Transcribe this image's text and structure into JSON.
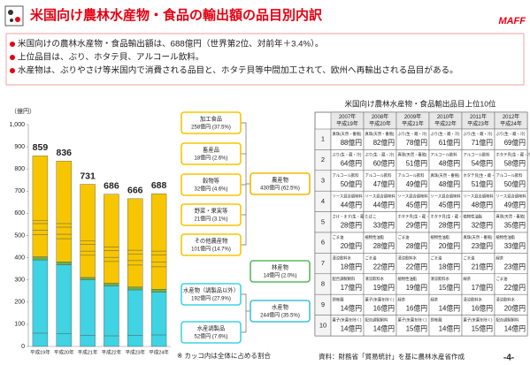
{
  "header": {
    "title": "米国向け農林水産物・食品の輸出額の品目別内訳",
    "logo_text": "MAFF"
  },
  "bullets": [
    "米国向けの農林水産物・食品輸出額は、688億円（世界第2位、対前年＋3.4%）。",
    "上位品目は、ぶり、ホタテ貝、アルコール飲料。",
    "水産物は、ぶりやさけ等米国内で消費される品目と、ホタテ貝等中間加工されて、欧州へ再輸出される品目がある。"
  ],
  "chart_data": {
    "type": "bar",
    "stacked": true,
    "ylabel": "（億円）",
    "categories": [
      "平成19年",
      "平成20年",
      "平成21年",
      "平成22年",
      "平成23年",
      "平成24年"
    ],
    "series": [
      {
        "name": "水産調製品",
        "label": "52億円 (7.6%)",
        "color": "#3fd3e3",
        "values": [
          60,
          58,
          50,
          48,
          50,
          52
        ]
      },
      {
        "name": "水産物（調製品以外）",
        "label": "192億円 (27.9%)",
        "color": "#3fd3e3",
        "values": [
          330,
          310,
          250,
          225,
          205,
          192
        ]
      },
      {
        "name": "林産物",
        "label": "14億円 (2.0%)",
        "color": "#6ab04c",
        "values": [
          14,
          13,
          11,
          12,
          13,
          14
        ]
      },
      {
        "name": "その他農産物",
        "label": "101億円 (14.7%)",
        "color": "#f7c600",
        "values": [
          100,
          105,
          100,
          98,
          99,
          101
        ]
      },
      {
        "name": "野菜・果実等",
        "label": "21億円 (3.1%)",
        "color": "#f7c600",
        "values": [
          20,
          20,
          19,
          19,
          20,
          21
        ]
      },
      {
        "name": "穀物等",
        "label": "32億円 (4.6%)",
        "color": "#f7c600",
        "values": [
          30,
          32,
          30,
          30,
          30,
          32
        ]
      },
      {
        "name": "畜産品",
        "label": "18億円 (2.6%)",
        "color": "#f7c600",
        "values": [
          15,
          16,
          15,
          16,
          17,
          18
        ]
      },
      {
        "name": "加工食品",
        "label": "258億円 (37.5%)",
        "color": "#f7c600",
        "values": [
          290,
          282,
          256,
          238,
          232,
          258
        ]
      }
    ],
    "totals": [
      859,
      836,
      731,
      686,
      666,
      688
    ],
    "groups": [
      {
        "name": "農産物",
        "label": "430億円 (62.5%)",
        "color": "#f5b800"
      },
      {
        "name": "水産物",
        "label": "244億円 (35.5%)",
        "color": "#3fc4d6"
      }
    ],
    "ylim": [
      0,
      1000
    ],
    "yticks": [
      0,
      100,
      200,
      300,
      400,
      500,
      600,
      700,
      800,
      900,
      {
        "value": 1000,
        "label": "1,000"
      }
    ],
    "grid": false
  },
  "table": {
    "title": "米国向け農林水産物・食品輸出品目上位10位",
    "columns": [
      {
        "year": "2007年",
        "era": "平成19年"
      },
      {
        "year": "2008年",
        "era": "平成20年"
      },
      {
        "year": "2009年",
        "era": "平成21年"
      },
      {
        "year": "2010年",
        "era": "平成22年"
      },
      {
        "year": "2011年",
        "era": "平成23年"
      },
      {
        "year": "2012年",
        "era": "平成24年"
      }
    ],
    "rows": [
      {
        "rank": 1,
        "cells": [
          {
            "item": "真珠(天然・養殖)",
            "value": "88億円"
          },
          {
            "item": "真珠(天然・養殖)",
            "value": "82億円"
          },
          {
            "item": "ぶり(生・蔵・冷)",
            "value": "78億円"
          },
          {
            "item": "ぶり(生・蔵・冷)",
            "value": "61億円"
          },
          {
            "item": "ぶり(生・蔵・冷)",
            "value": "71億円"
          },
          {
            "item": "ぶり(生・蔵・冷)",
            "value": "69億円"
          }
        ]
      },
      {
        "rank": 2,
        "cells": [
          {
            "item": "ぶり(生・蔵・冷)",
            "value": "64億円"
          },
          {
            "item": "ぶり(生・蔵・冷)",
            "value": "60億円"
          },
          {
            "item": "真珠(天然・養殖)",
            "value": "51億円"
          },
          {
            "item": "アルコール飲料",
            "value": "48億円"
          },
          {
            "item": "アルコール飲料",
            "value": "54億円"
          },
          {
            "item": "ホタテ貝(生・蔵・冷)",
            "value": "58億円"
          }
        ]
      },
      {
        "rank": 3,
        "cells": [
          {
            "item": "アルコール飲料",
            "value": "50億円"
          },
          {
            "item": "アルコール飲料",
            "value": "47億円"
          },
          {
            "item": "アルコール飲料",
            "value": "49億円"
          },
          {
            "item": "真珠(天然・養殖)",
            "value": "48億円"
          },
          {
            "item": "ホタテ貝(生・蔵・冷)",
            "value": "51億円"
          },
          {
            "item": "アルコール飲料",
            "value": "50億円"
          }
        ]
      },
      {
        "rank": 4,
        "cells": [
          {
            "item": "ソース混合調味料",
            "value": "44億円"
          },
          {
            "item": "ソース混合調味料",
            "value": "44億円"
          },
          {
            "item": "ソース混合調味料",
            "value": "45億円"
          },
          {
            "item": "ソース混合調味料",
            "value": "45億円"
          },
          {
            "item": "ソース混合調味料",
            "value": "48億円"
          },
          {
            "item": "ソース混合調味料",
            "value": "49億円"
          }
        ]
      },
      {
        "rank": 5,
        "cells": [
          {
            "item": "さけ・ます(生・蔵・冷)",
            "value": "28億円"
          },
          {
            "item": "たばこ",
            "value": "33億円"
          },
          {
            "item": "ホタテ貝(生・蔵・冷)",
            "value": "29億円"
          },
          {
            "item": "ホタテ貝(生・蔵・冷)",
            "value": "28億円"
          },
          {
            "item": "植物性油脂",
            "value": "32億円"
          },
          {
            "item": "真珠(天然・養殖)",
            "value": "35億円"
          }
        ]
      },
      {
        "rank": 6,
        "cells": [
          {
            "item": "ごま油",
            "value": "20億円"
          },
          {
            "item": "植物性油脂",
            "value": "28億円"
          },
          {
            "item": "ごま油",
            "value": "28億円"
          },
          {
            "item": "植物性油脂",
            "value": "20億円"
          },
          {
            "item": "真珠(天然・養殖)",
            "value": "23億円"
          },
          {
            "item": "植物性油脂",
            "value": "33億円"
          }
        ]
      },
      {
        "rank": 7,
        "cells": [
          {
            "item": "清涼飲料水",
            "value": "18億円"
          },
          {
            "item": "ごま油",
            "value": "22億円"
          },
          {
            "item": "清涼飲料水",
            "value": "22億円"
          },
          {
            "item": "ごま油",
            "value": "18億円"
          },
          {
            "item": "ごま油",
            "value": "21億円"
          },
          {
            "item": "緑茶",
            "value": "23億円"
          }
        ]
      },
      {
        "rank": 8,
        "cells": [
          {
            "item": "配合調製飼料",
            "value": "17億円"
          },
          {
            "item": "清涼飲料水",
            "value": "19億円"
          },
          {
            "item": "植物性油脂",
            "value": "19億円"
          },
          {
            "item": "清涼飲料水",
            "value": "15億円"
          },
          {
            "item": "緑茶",
            "value": "17億円"
          },
          {
            "item": "ごま油",
            "value": "22億円"
          }
        ]
      },
      {
        "rank": 9,
        "cells": [
          {
            "item": "即席麺",
            "value": "14億円"
          },
          {
            "item": "菓子(米菓を除く)",
            "value": "16億円"
          },
          {
            "item": "緑茶",
            "value": "16億円"
          },
          {
            "item": "緑茶",
            "value": "14億円"
          },
          {
            "item": "清涼飲料水",
            "value": "16億円"
          },
          {
            "item": "清涼飲料水",
            "value": "20億円"
          }
        ]
      },
      {
        "rank": 10,
        "cells": [
          {
            "item": "菓子(米菓を除く)",
            "value": "14億円"
          },
          {
            "item": "配合調製飼料",
            "value": "14億円"
          },
          {
            "item": "菓子(米菓を除く)",
            "value": "15億円"
          },
          {
            "item": "即席麺",
            "value": "14億円"
          },
          {
            "item": "菓子(米菓を除く)",
            "value": "15億円"
          },
          {
            "item": "配合調製飼料",
            "value": "14億円"
          }
        ]
      }
    ]
  },
  "notes": {
    "share_note": "※ カッコ内は全体に占める割合",
    "source": "資料：財務省「貿易統計」を基に農林水産省作成",
    "page": "-4-"
  }
}
